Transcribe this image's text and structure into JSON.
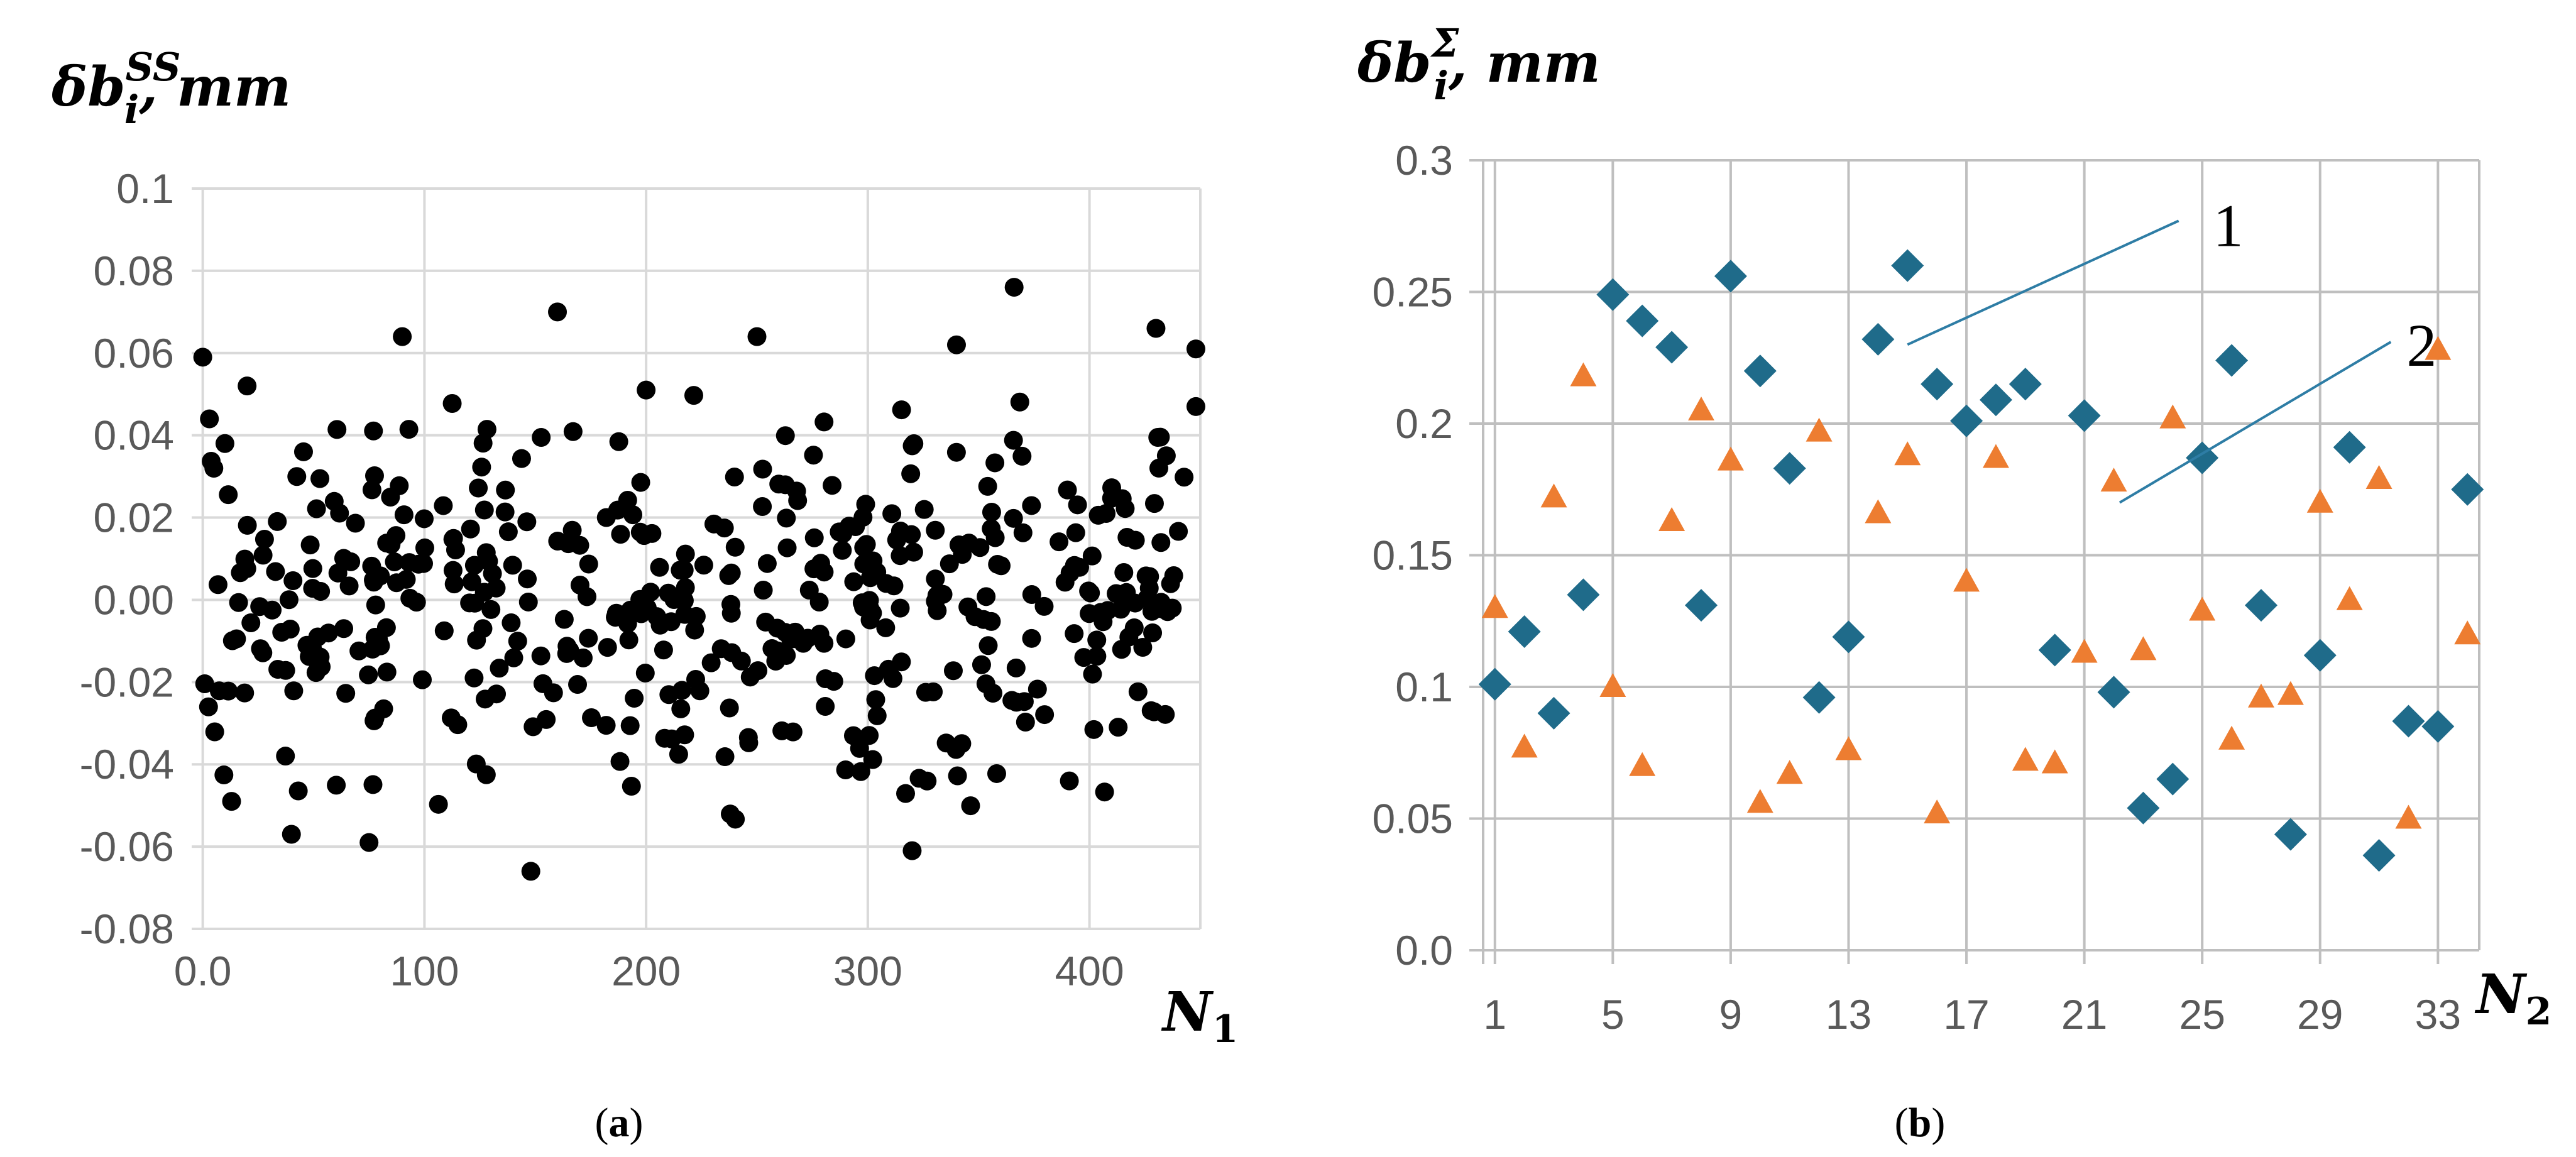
{
  "chart_data": [
    {
      "panel": "(a)",
      "type": "scatter",
      "ylabel_base": "δb",
      "ylabel_sub": "i",
      "ylabel_sup": "SS",
      "ylabel_unit": ", mm",
      "xlabel_base": "N",
      "xlabel_sub": "1",
      "xlim": [
        -5,
        450
      ],
      "ylim": [
        -0.08,
        0.1
      ],
      "xticks": [
        0,
        100,
        200,
        300,
        400
      ],
      "xtick_labels": [
        "0.0",
        "100",
        "200",
        "300",
        "400"
      ],
      "yticks": [
        0.1,
        0.08,
        0.06,
        0.04,
        0.02,
        0.0,
        -0.02,
        -0.04,
        -0.06,
        -0.08
      ],
      "ytick_labels": [
        "0.1",
        "0.08",
        "0.06",
        "0.04",
        "0.02",
        "0.00",
        "-0.02",
        "-0.04",
        "-0.06",
        "-0.08"
      ],
      "grid": true,
      "marker": "circle",
      "color": "#000000",
      "seed": 12345,
      "n_points": 450,
      "sample_points": [
        [
          0,
          0.059
        ],
        [
          3,
          0.044
        ],
        [
          5,
          0.032
        ],
        [
          10,
          0.038
        ],
        [
          13,
          -0.049
        ],
        [
          20,
          0.052
        ],
        [
          40,
          -0.057
        ],
        [
          75,
          -0.059
        ],
        [
          90,
          0.064
        ],
        [
          148,
          -0.066
        ],
        [
          160,
          0.07
        ],
        [
          200,
          0.051
        ],
        [
          250,
          0.064
        ],
        [
          320,
          -0.061
        ],
        [
          340,
          0.062
        ],
        [
          366,
          0.076
        ],
        [
          430,
          0.066
        ],
        [
          448,
          0.061
        ],
        [
          448,
          0.047
        ]
      ]
    },
    {
      "panel": "(b)",
      "type": "scatter",
      "ylabel_base": "δb",
      "ylabel_sub": "i",
      "ylabel_sup": "Σ",
      "ylabel_unit": ", mm",
      "xlabel_base": "N",
      "xlabel_sub": "2",
      "xlim": [
        0.6,
        34.4
      ],
      "ylim": [
        0.0,
        0.3
      ],
      "xticks": [
        1,
        5,
        9,
        13,
        17,
        21,
        25,
        29,
        33
      ],
      "xtick_labels": [
        "1",
        "5",
        "9",
        "13",
        "17",
        "21",
        "25",
        "29",
        "33"
      ],
      "yticks": [
        0.3,
        0.25,
        0.2,
        0.15,
        0.1,
        0.05,
        0.0
      ],
      "ytick_labels": [
        "0.3",
        "0.25",
        "0.2",
        "0.15",
        "0.1",
        "0.05",
        "0.0"
      ],
      "grid": true,
      "x": [
        1,
        2,
        3,
        4,
        5,
        6,
        7,
        8,
        9,
        10,
        11,
        12,
        13,
        14,
        15,
        16,
        17,
        18,
        19,
        20,
        21,
        22,
        23,
        24,
        25,
        26,
        27,
        28,
        29,
        30,
        31,
        32,
        33,
        34
      ],
      "series": [
        {
          "name": "1",
          "marker": "diamond",
          "color": "#1F6B8A",
          "values": [
            0.101,
            0.121,
            0.09,
            0.135,
            0.249,
            0.239,
            0.229,
            0.131,
            0.256,
            0.22,
            0.183,
            0.096,
            0.119,
            0.232,
            0.26,
            0.215,
            0.201,
            0.209,
            0.215,
            0.114,
            0.203,
            0.098,
            0.054,
            0.065,
            0.187,
            0.224,
            0.131,
            0.044,
            0.112,
            0.191,
            0.036,
            0.087,
            0.085,
            0.175
          ]
        },
        {
          "name": "2",
          "marker": "triangle",
          "color": "#ED7D31",
          "values": [
            0.13,
            0.077,
            0.172,
            0.218,
            0.1,
            0.07,
            0.163,
            0.205,
            0.186,
            0.056,
            0.067,
            0.197,
            0.076,
            0.166,
            0.188,
            0.052,
            0.14,
            0.187,
            0.072,
            0.071,
            0.113,
            0.178,
            0.114,
            0.202,
            0.129,
            0.08,
            0.096,
            0.097,
            0.17,
            0.133,
            0.179,
            0.05,
            0.228,
            0.12
          ]
        }
      ],
      "annotations": [
        {
          "label": "1",
          "series": "1"
        },
        {
          "label": "2",
          "series": "2"
        }
      ]
    }
  ]
}
